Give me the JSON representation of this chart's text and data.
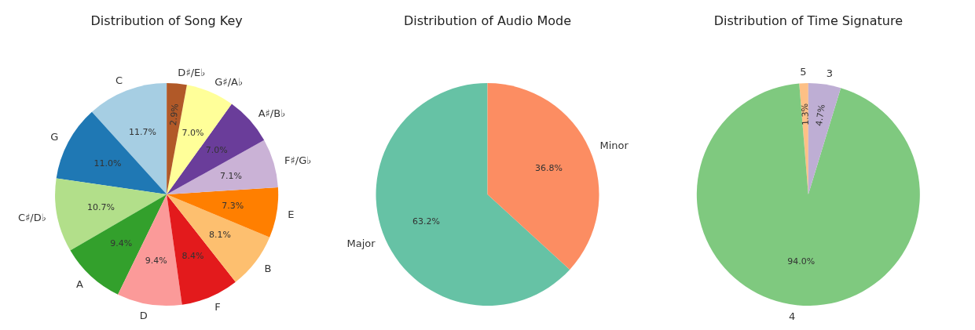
{
  "chart_data": [
    {
      "type": "pie",
      "title": "Distribution of Song Key",
      "categories": [
        "C",
        "G",
        "C♯/D♭",
        "A",
        "D",
        "F",
        "B",
        "E",
        "F♯/G♭",
        "A♯/B♭",
        "G♯/A♭",
        "D♯/E♭"
      ],
      "values": [
        11.7,
        11.0,
        10.7,
        9.4,
        9.4,
        8.4,
        8.1,
        7.3,
        7.1,
        7.0,
        7.0,
        2.9
      ],
      "value_labels": [
        "11.7%",
        "11.0%",
        "10.7%",
        "9.4%",
        "9.4%",
        "8.4%",
        "8.1%",
        "7.3%",
        "7.1%",
        "7.0%",
        "7.0%",
        "2.9%"
      ],
      "colors": [
        "#a6cee3",
        "#1f78b4",
        "#b2df8a",
        "#33a02c",
        "#fb9a99",
        "#e31a1c",
        "#fdbf6f",
        "#ff7f00",
        "#cab2d6",
        "#6a3d9a",
        "#ffff99",
        "#b15928"
      ]
    },
    {
      "type": "pie",
      "title": "Distribution of Audio Mode",
      "categories": [
        "Major",
        "Minor"
      ],
      "values": [
        63.2,
        36.8
      ],
      "value_labels": [
        "63.2%",
        "36.8%"
      ],
      "colors": [
        "#66c2a5",
        "#fc8d62"
      ]
    },
    {
      "type": "pie",
      "title": "Distribution of Time Signature",
      "categories": [
        "5",
        "4",
        "3"
      ],
      "values": [
        1.3,
        94.0,
        4.7
      ],
      "value_labels": [
        "1.3%",
        "94.0%",
        "4.7%"
      ],
      "colors": [
        "#fdc086",
        "#7fc97f",
        "#beaed4"
      ]
    }
  ]
}
